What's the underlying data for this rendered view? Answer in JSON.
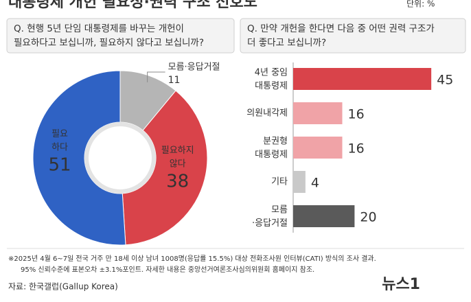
{
  "title": "대통령제 개헌 필요성·권력 구조 선호도",
  "unit": "단위: %",
  "chart_data": [
    {
      "type": "donut",
      "title": "Q. 현행 5년 단임 대통령제를 바꾸는 개헌이\n필요하다고 보십니까, 필요하지 않다고 보십니까?",
      "categories": [
        "모름·응답거절",
        "필요하지\n않다",
        "필요\n하다"
      ],
      "values": [
        11,
        38,
        51
      ],
      "colors": [
        "#b5b5b5",
        "#d9434a",
        "#2f62c4"
      ]
    },
    {
      "type": "bar",
      "title": "Q. 만약 개헌을 한다면 다음 중 어떤 권력 구조가\n더 좋다고 보십니까?",
      "categories": [
        "4년 중임\n대통령제",
        "의원내각제",
        "분권형\n대통령제",
        "기타",
        "모름\n·응답거절"
      ],
      "values": [
        45,
        16,
        16,
        4,
        20
      ],
      "colors": [
        "#d9434a",
        "#f0a3a7",
        "#f0a3a7",
        "#c9c9c9",
        "#5a5a5a"
      ]
    }
  ],
  "notes": [
    "※2025년 4월 6~7일 전국 거주 만 18세 이상 남녀 1008명(응답률 15.5%) 대상 전화조사원 인터뷰(CATI) 방식의 조사 결과.",
    "95% 신뢰수준에 표본오차 ±3.1%포인트. 자세한 내용은 중앙선거여론조사심의위원회 홈페이지 참조."
  ],
  "source": "자료: 한국갤럽(Gallup Korea)",
  "logo": "뉴스1"
}
